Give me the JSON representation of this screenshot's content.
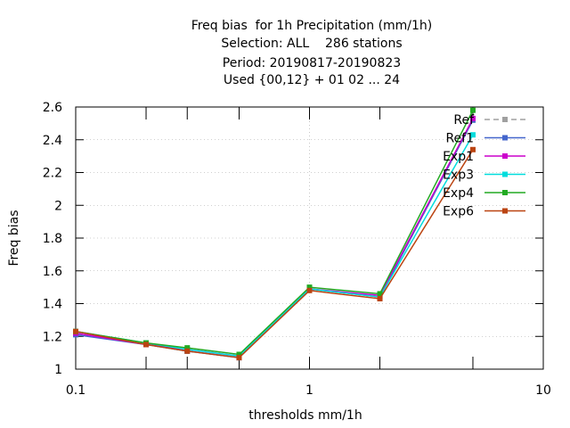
{
  "chart_data": {
    "type": "line",
    "title_lines": [
      "Freq bias  for 1h Precipitation (mm/1h)",
      "Selection: ALL    286 stations",
      "Period: 20190817-20190823",
      "Used {00,12} + 01 02 ... 24"
    ],
    "xlabel": "thresholds mm/1h",
    "ylabel": "Freq bias",
    "x_scale": "log",
    "xlim": [
      0.1,
      10
    ],
    "ylim": [
      1,
      2.6
    ],
    "x_ticks": [
      0.1,
      1,
      10
    ],
    "x_tick_labels": [
      "0.1",
      "1",
      "10"
    ],
    "x_minor_ticks": [
      0.2,
      0.3,
      0.5,
      2,
      5
    ],
    "y_ticks": [
      1,
      1.2,
      1.4,
      1.6,
      1.8,
      2,
      2.2,
      2.4,
      2.6
    ],
    "y_tick_labels": [
      "1",
      "1.2",
      "1.4",
      "1.6",
      "1.8",
      "2",
      "2.2",
      "2.4",
      "2.6"
    ],
    "grid": "dotted, at major ticks",
    "legend_position": "top-right",
    "x": [
      0.1,
      0.2,
      0.3,
      0.5,
      1,
      2,
      5
    ],
    "series": [
      {
        "name": "Ref",
        "color": "#a0a0a0",
        "dash": "dashed",
        "values": [
          1.22,
          1.15,
          1.11,
          1.07,
          1.49,
          1.44,
          2.52
        ]
      },
      {
        "name": "Ref1",
        "color": "#4466cc",
        "dash": "solid",
        "values": [
          1.21,
          1.15,
          1.11,
          1.07,
          1.49,
          1.44,
          2.52
        ]
      },
      {
        "name": "Exp1",
        "color": "#cc00cc",
        "dash": "solid",
        "values": [
          1.22,
          1.15,
          1.12,
          1.08,
          1.49,
          1.45,
          2.53
        ]
      },
      {
        "name": "Exp3",
        "color": "#00dddd",
        "dash": "solid",
        "values": [
          1.23,
          1.16,
          1.12,
          1.08,
          1.49,
          1.44,
          2.43
        ]
      },
      {
        "name": "Exp4",
        "color": "#22aa22",
        "dash": "solid",
        "values": [
          1.23,
          1.16,
          1.13,
          1.09,
          1.5,
          1.46,
          2.58
        ]
      },
      {
        "name": "Exp6",
        "color": "#bb4411",
        "dash": "solid",
        "values": [
          1.23,
          1.15,
          1.11,
          1.07,
          1.48,
          1.43,
          2.34
        ]
      }
    ]
  }
}
